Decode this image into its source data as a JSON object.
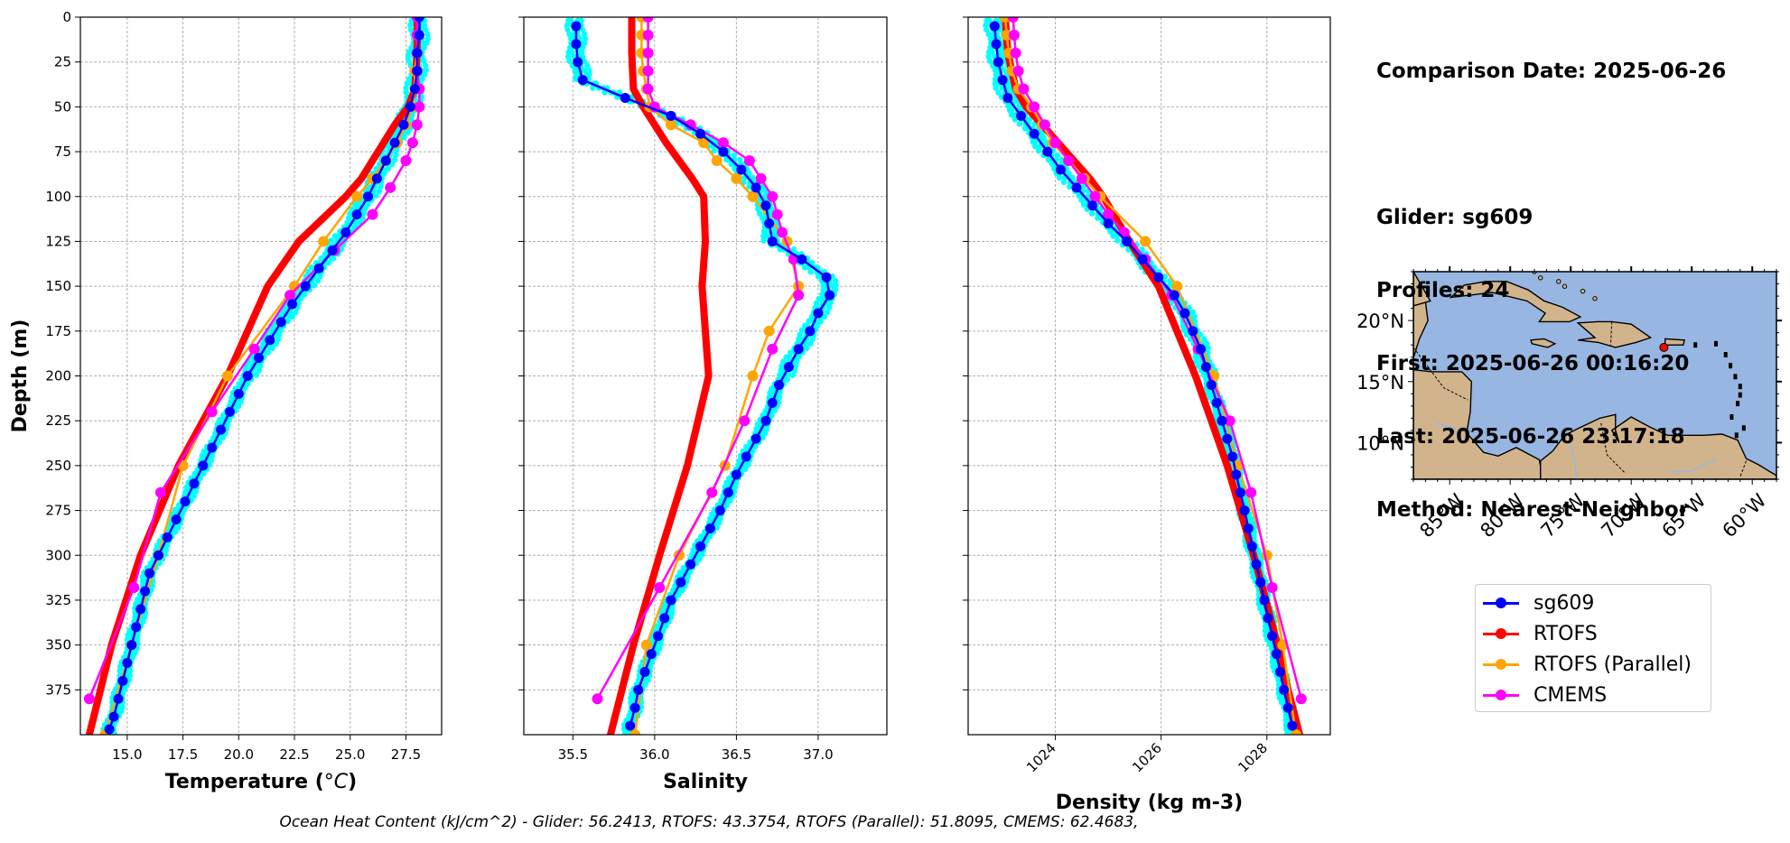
{
  "info": {
    "comparison": "Comparison Date: 2025-06-26",
    "glider": "Glider: sg609",
    "profiles": "Profiles: 24",
    "first": "First: 2025-06-26 00:16:20",
    "last": "Last: 2025-06-26 23:17:18",
    "method": "Method: Nearest-Neighbor"
  },
  "footer": "Ocean Heat Content (kJ/cm^2) - Glider: 56.2413,  RTOFS: 43.3754,  RTOFS (Parallel): 51.8095,  CMEMS: 62.4683,",
  "colors": {
    "glider": "#0000ff",
    "rtofs": "#ff0000",
    "parallel": "#ffa500",
    "cmems": "#ff00ff",
    "individual": "#00ffff",
    "ocean": "#97b6e1",
    "land": "#d2b48c"
  },
  "legend": [
    {
      "label": "sg609",
      "color": "#0000ff"
    },
    {
      "label": "RTOFS",
      "color": "#ff0000"
    },
    {
      "label": "RTOFS (Parallel)",
      "color": "#ffa500"
    },
    {
      "label": "CMEMS",
      "color": "#ff00ff"
    }
  ],
  "map": {
    "lon_ticks": [
      "85°W",
      "80°W",
      "75°W",
      "70°W",
      "65°W",
      "60°W"
    ],
    "lon_values": [
      -85,
      -80,
      -75,
      -70,
      -65,
      -60
    ],
    "lat_ticks": [
      "20°N",
      "15°N",
      "10°N"
    ],
    "lat_values": [
      20,
      15,
      10
    ],
    "extent": {
      "lon": [
        -88,
        -58
      ],
      "lat": [
        7,
        24
      ]
    },
    "glider_location": {
      "lon": -67.3,
      "lat": 17.8
    }
  },
  "chart_data": [
    {
      "type": "line",
      "xlabel": "Temperature (°C)",
      "ylabel": "Depth (m)",
      "xlim": [
        12.9,
        29.1
      ],
      "ylim": [
        400,
        0
      ],
      "xticks": [
        15.0,
        17.5,
        20.0,
        22.5,
        25.0,
        27.5
      ],
      "xtick_labels": [
        "15.0",
        "17.5",
        "20.0",
        "22.5",
        "25.0",
        "27.5"
      ],
      "yticks": [
        0,
        25,
        50,
        75,
        100,
        125,
        150,
        175,
        200,
        225,
        250,
        275,
        300,
        325,
        350,
        375
      ],
      "yticks_labelled": true,
      "grid": true,
      "series": [
        {
          "name": "sg609",
          "depth": [
            0,
            10,
            20,
            30,
            40,
            50,
            60,
            70,
            80,
            90,
            100,
            110,
            120,
            130,
            140,
            150,
            160,
            170,
            180,
            190,
            200,
            210,
            220,
            230,
            240,
            250,
            260,
            270,
            280,
            290,
            300,
            310,
            320,
            330,
            340,
            350,
            360,
            370,
            380,
            390,
            397
          ],
          "values": [
            28.1,
            28.1,
            28.0,
            28.0,
            27.9,
            27.7,
            27.4,
            27.0,
            26.6,
            26.2,
            25.8,
            25.3,
            24.8,
            24.2,
            23.6,
            23.0,
            22.4,
            21.9,
            21.4,
            20.9,
            20.4,
            20.0,
            19.6,
            19.2,
            18.8,
            18.4,
            18.0,
            17.6,
            17.2,
            16.8,
            16.4,
            16.0,
            15.8,
            15.6,
            15.4,
            15.2,
            15.0,
            14.8,
            14.6,
            14.4,
            14.2
          ]
        },
        {
          "name": "RTOFS",
          "depth": [
            0,
            20,
            40,
            50,
            60,
            70,
            80,
            90,
            100,
            125,
            150,
            200,
            250,
            300,
            350,
            400
          ],
          "values": [
            28.0,
            28.0,
            27.9,
            27.6,
            27.0,
            26.5,
            26.0,
            25.5,
            24.8,
            22.7,
            21.3,
            19.5,
            17.3,
            15.6,
            14.3,
            13.3
          ]
        },
        {
          "name": "RTOFS (Parallel)",
          "depth": [
            0,
            10,
            20,
            30,
            40,
            50,
            60,
            70,
            80,
            90,
            100,
            125,
            150,
            200,
            250,
            300,
            350,
            400
          ],
          "values": [
            28.0,
            28.0,
            28.0,
            27.9,
            27.9,
            27.8,
            27.5,
            27.1,
            26.6,
            26.0,
            25.3,
            23.8,
            22.5,
            19.5,
            17.5,
            16.4,
            15.2,
            14.0
          ]
        },
        {
          "name": "CMEMS",
          "depth": [
            0,
            10,
            20,
            30,
            40,
            50,
            60,
            70,
            80,
            95,
            110,
            130,
            155,
            185,
            220,
            265,
            318,
            380
          ],
          "values": [
            28.0,
            28.0,
            28.0,
            28.0,
            28.1,
            28.1,
            28.0,
            27.8,
            27.5,
            26.8,
            26.0,
            24.3,
            22.3,
            20.7,
            18.8,
            16.5,
            15.3,
            13.3
          ]
        }
      ]
    },
    {
      "type": "line",
      "xlabel": "Salinity",
      "ylabel": "",
      "xlim": [
        35.2,
        37.42
      ],
      "ylim": [
        400,
        0
      ],
      "xticks": [
        35.5,
        36.0,
        36.5,
        37.0
      ],
      "xtick_labels": [
        "35.5",
        "36.0",
        "36.5",
        "37.0"
      ],
      "yticks": [
        0,
        25,
        50,
        75,
        100,
        125,
        150,
        175,
        200,
        225,
        250,
        275,
        300,
        325,
        350,
        375
      ],
      "yticks_labelled": false,
      "grid": true,
      "series": [
        {
          "name": "sg609",
          "depth": [
            5,
            15,
            25,
            35,
            45,
            55,
            65,
            75,
            85,
            95,
            105,
            115,
            125,
            135,
            145,
            155,
            165,
            175,
            185,
            195,
            205,
            215,
            225,
            235,
            245,
            255,
            265,
            275,
            285,
            295,
            305,
            315,
            325,
            335,
            345,
            355,
            365,
            375,
            385,
            395
          ],
          "values": [
            35.52,
            35.52,
            35.53,
            35.56,
            35.82,
            36.1,
            36.28,
            36.42,
            36.53,
            36.62,
            36.68,
            36.7,
            36.72,
            36.9,
            37.05,
            37.07,
            37.0,
            36.95,
            36.88,
            36.82,
            36.76,
            36.72,
            36.68,
            36.62,
            36.56,
            36.5,
            36.45,
            36.4,
            36.34,
            36.28,
            36.22,
            36.16,
            36.1,
            36.06,
            36.02,
            35.98,
            35.94,
            35.9,
            35.88,
            35.85
          ]
        },
        {
          "name": "RTOFS",
          "depth": [
            0,
            20,
            40,
            50,
            60,
            70,
            80,
            90,
            100,
            125,
            150,
            175,
            200,
            250,
            300,
            350,
            400
          ],
          "values": [
            35.86,
            35.86,
            35.87,
            35.93,
            36.0,
            36.07,
            36.15,
            36.23,
            36.3,
            36.31,
            36.29,
            36.31,
            36.33,
            36.2,
            36.03,
            35.87,
            35.73
          ]
        },
        {
          "name": "RTOFS (Parallel)",
          "depth": [
            0,
            10,
            20,
            30,
            40,
            50,
            60,
            70,
            80,
            90,
            100,
            125,
            150,
            175,
            200,
            250,
            300,
            350,
            400
          ],
          "values": [
            35.92,
            35.92,
            35.92,
            35.93,
            35.95,
            35.97,
            36.1,
            36.3,
            36.38,
            36.5,
            36.6,
            36.81,
            36.88,
            36.7,
            36.6,
            36.43,
            36.15,
            35.95,
            35.88
          ]
        },
        {
          "name": "CMEMS",
          "depth": [
            0,
            10,
            20,
            30,
            40,
            50,
            60,
            70,
            80,
            90,
            100,
            110,
            120,
            135,
            155,
            185,
            225,
            265,
            318,
            380
          ],
          "values": [
            35.96,
            35.96,
            35.96,
            35.96,
            35.96,
            36.0,
            36.22,
            36.42,
            36.58,
            36.65,
            36.72,
            36.75,
            36.78,
            36.85,
            36.88,
            36.72,
            36.55,
            36.35,
            36.03,
            35.65
          ]
        }
      ]
    },
    {
      "type": "line",
      "xlabel": "Density (kg m-3)",
      "ylabel": "",
      "xlim": [
        1022.35,
        1029.2
      ],
      "ylim": [
        400,
        0
      ],
      "xticks": [
        1024,
        1026,
        1028
      ],
      "xtick_labels": [
        "1024",
        "1026",
        "1028"
      ],
      "yticks": [
        0,
        25,
        50,
        75,
        100,
        125,
        150,
        175,
        200,
        225,
        250,
        275,
        300,
        325,
        350,
        375
      ],
      "yticks_labelled": false,
      "grid": true,
      "series": [
        {
          "name": "sg609",
          "depth": [
            5,
            15,
            25,
            35,
            45,
            55,
            65,
            75,
            85,
            95,
            105,
            115,
            125,
            135,
            145,
            155,
            165,
            175,
            185,
            195,
            205,
            215,
            225,
            235,
            245,
            255,
            265,
            275,
            285,
            295,
            305,
            315,
            325,
            335,
            345,
            355,
            365,
            375,
            385,
            395
          ],
          "values": [
            1022.85,
            1022.88,
            1022.92,
            1023.0,
            1023.1,
            1023.35,
            1023.6,
            1023.85,
            1024.1,
            1024.4,
            1024.7,
            1025.0,
            1025.35,
            1025.65,
            1025.95,
            1026.25,
            1026.45,
            1026.6,
            1026.75,
            1026.85,
            1026.95,
            1027.05,
            1027.15,
            1027.25,
            1027.35,
            1027.42,
            1027.5,
            1027.58,
            1027.65,
            1027.72,
            1027.8,
            1027.88,
            1027.95,
            1028.02,
            1028.1,
            1028.18,
            1028.25,
            1028.32,
            1028.4,
            1028.48
          ]
        },
        {
          "name": "RTOFS",
          "depth": [
            0,
            20,
            40,
            50,
            60,
            70,
            80,
            90,
            100,
            125,
            150,
            175,
            200,
            225,
            250,
            275,
            300,
            325,
            350,
            375,
            400
          ],
          "values": [
            1023.05,
            1023.1,
            1023.25,
            1023.45,
            1023.75,
            1024.05,
            1024.35,
            1024.65,
            1024.9,
            1025.4,
            1025.95,
            1026.3,
            1026.65,
            1026.95,
            1027.25,
            1027.5,
            1027.75,
            1027.98,
            1028.2,
            1028.4,
            1028.62
          ]
        },
        {
          "name": "RTOFS (Parallel)",
          "depth": [
            0,
            10,
            20,
            30,
            40,
            50,
            60,
            70,
            80,
            90,
            100,
            125,
            150,
            200,
            250,
            300,
            350,
            400
          ],
          "values": [
            1023.05,
            1023.08,
            1023.12,
            1023.18,
            1023.3,
            1023.55,
            1023.75,
            1023.95,
            1024.25,
            1024.55,
            1024.85,
            1025.7,
            1026.3,
            1027.0,
            1027.45,
            1028.0,
            1028.3,
            1028.55
          ]
        },
        {
          "name": "CMEMS",
          "depth": [
            0,
            10,
            20,
            30,
            40,
            50,
            60,
            70,
            80,
            90,
            100,
            110,
            120,
            135,
            155,
            185,
            225,
            265,
            318,
            380
          ],
          "values": [
            1023.2,
            1023.22,
            1023.25,
            1023.3,
            1023.4,
            1023.6,
            1023.8,
            1024.0,
            1024.25,
            1024.5,
            1024.75,
            1025.0,
            1025.3,
            1025.7,
            1026.2,
            1026.7,
            1027.3,
            1027.7,
            1028.1,
            1028.65
          ]
        }
      ]
    }
  ]
}
